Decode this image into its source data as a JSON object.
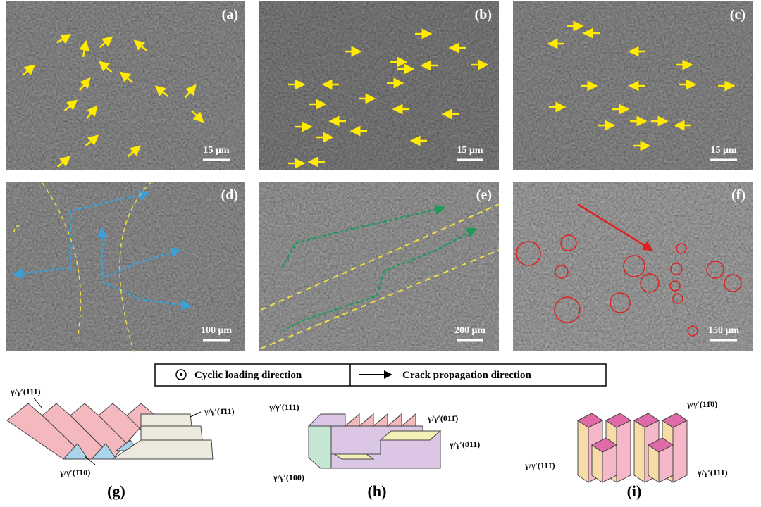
{
  "panels": [
    {
      "label": "(a)",
      "scale": "15 μm"
    },
    {
      "label": "(b)",
      "scale": "15 μm"
    },
    {
      "label": "(c)",
      "scale": "15 μm"
    },
    {
      "label": "(d)",
      "scale": "100 μm"
    },
    {
      "label": "(e)",
      "scale": "200 μm"
    },
    {
      "label": "(f)",
      "scale": "150 μm"
    }
  ],
  "legend": {
    "cyclic": "Cyclic loading direction",
    "crack": "Crack propagation direction"
  },
  "diagrams": [
    {
      "label": "(g)",
      "planes": [
        "γ/γ′(111)",
        "γ/γ′(1̄11)",
        "γ/γ′(1̄10)"
      ]
    },
    {
      "label": "(h)",
      "planes": [
        "γ/γ′(111)",
        "γ/γ′(011̄)",
        "γ/γ′(011)",
        "γ/γ′(100)"
      ]
    },
    {
      "label": "(i)",
      "planes": [
        "γ/γ′(11̄0)",
        "γ/γ′(111)",
        "γ/γ′(111̄)"
      ]
    }
  ]
}
